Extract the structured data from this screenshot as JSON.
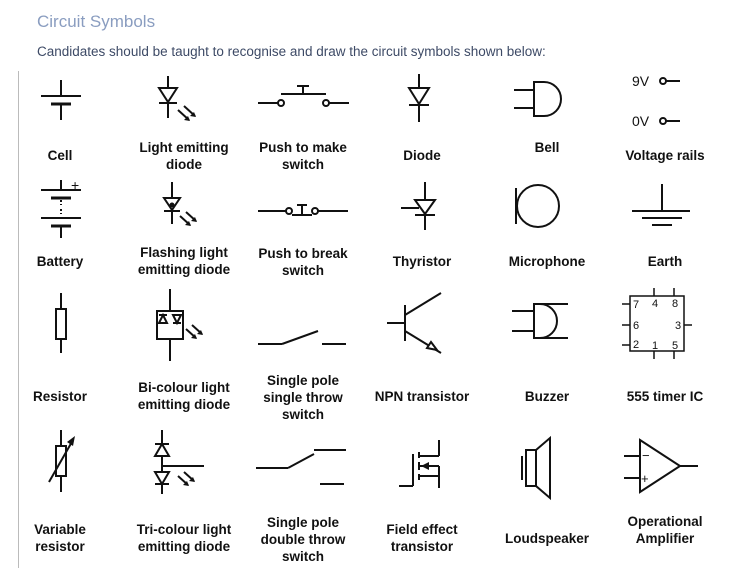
{
  "page": {
    "title": "Circuit Symbols",
    "subtitle": "Candidates should be taught to recognise and draw the circuit symbols shown below:"
  },
  "symbols": [
    {
      "label": "Cell",
      "icon": "cell-icon"
    },
    {
      "label": "Light emitting\ndiode",
      "icon": "light-emitting-diode-icon"
    },
    {
      "label": "Push to make\nswitch",
      "icon": "push-to-make-switch-icon"
    },
    {
      "label": "Diode",
      "icon": "diode-icon"
    },
    {
      "label": "Bell",
      "icon": "bell-icon"
    },
    {
      "label": "Voltage rails",
      "icon": "voltage-rails-icon",
      "texts": [
        "9V",
        "0V"
      ]
    },
    {
      "label": "Battery",
      "icon": "battery-icon",
      "texts": [
        "+"
      ]
    },
    {
      "label": "Flashing light\nemitting diode",
      "icon": "flashing-led-icon"
    },
    {
      "label": "Push to break\nswitch",
      "icon": "push-to-break-switch-icon"
    },
    {
      "label": "Thyristor",
      "icon": "thyristor-icon"
    },
    {
      "label": "Microphone",
      "icon": "microphone-icon"
    },
    {
      "label": "Earth",
      "icon": "earth-icon"
    },
    {
      "label": "Resistor",
      "icon": "resistor-icon"
    },
    {
      "label": "Bi-colour light\nemitting diode",
      "icon": "bi-colour-led-icon"
    },
    {
      "label": "Single pole\nsingle throw\nswitch",
      "icon": "spst-switch-icon"
    },
    {
      "label": "NPN transistor",
      "icon": "npn-transistor-icon"
    },
    {
      "label": "Buzzer",
      "icon": "buzzer-icon"
    },
    {
      "label": "555 timer IC",
      "icon": "timer-555-ic-icon",
      "texts": [
        "7",
        "4",
        "8",
        "6",
        "3",
        "2",
        "1",
        "5"
      ]
    },
    {
      "label": "Variable\nresistor",
      "icon": "variable-resistor-icon"
    },
    {
      "label": "Tri-colour light\nemitting diode",
      "icon": "tri-colour-led-icon"
    },
    {
      "label": "Single pole\ndouble throw\nswitch",
      "icon": "spdt-switch-icon"
    },
    {
      "label": "Field effect\ntransistor",
      "icon": "fet-icon"
    },
    {
      "label": "Loudspeaker",
      "icon": "loudspeaker-icon"
    },
    {
      "label": "Operational\nAmplifier",
      "icon": "op-amp-icon",
      "texts": [
        "−",
        "+"
      ]
    }
  ]
}
